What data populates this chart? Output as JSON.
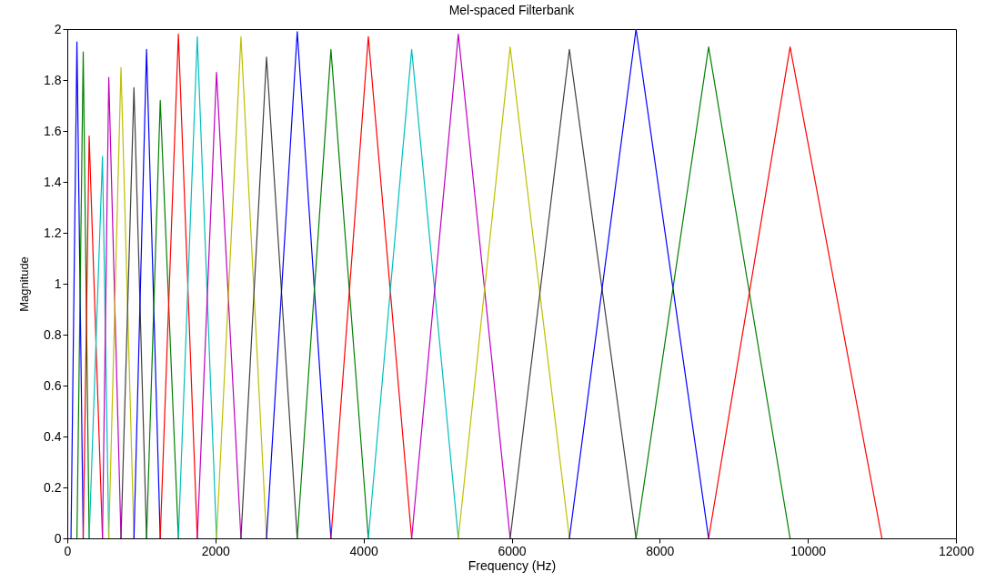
{
  "chart_data": {
    "type": "line",
    "title": "Mel-spaced Filterbank",
    "xlabel": "Frequency (Hz)",
    "ylabel": "Magnitude",
    "xlim": [
      0,
      12000
    ],
    "xticks": [
      0,
      2000,
      4000,
      6000,
      8000,
      10000,
      12000
    ],
    "ylim": [
      0,
      2
    ],
    "yticks": [
      0,
      0.2,
      0.4,
      0.6,
      0.8,
      1,
      1.2,
      1.4,
      1.6,
      1.8,
      2
    ],
    "grid": false,
    "legend": false,
    "series": [
      {
        "color": "#0000ff",
        "x": [
          50,
          130,
          215
        ],
        "values": [
          0,
          1.95,
          0
        ]
      },
      {
        "color": "#008000",
        "x": [
          130,
          215,
          295
        ],
        "values": [
          0,
          1.91,
          0
        ]
      },
      {
        "color": "#ff0000",
        "x": [
          215,
          295,
          475
        ],
        "values": [
          0,
          1.58,
          0
        ]
      },
      {
        "color": "#00bfbf",
        "x": [
          295,
          475,
          560
        ],
        "values": [
          0,
          1.5,
          0
        ]
      },
      {
        "color": "#bf00bf",
        "x": [
          475,
          560,
          725
        ],
        "values": [
          0,
          1.81,
          0
        ]
      },
      {
        "color": "#bfbf00",
        "x": [
          560,
          725,
          900
        ],
        "values": [
          0,
          1.85,
          0
        ]
      },
      {
        "color": "#404040",
        "x": [
          725,
          900,
          1070
        ],
        "values": [
          0,
          1.77,
          0
        ]
      },
      {
        "color": "#0000ff",
        "x": [
          900,
          1070,
          1255
        ],
        "values": [
          0,
          1.92,
          0
        ]
      },
      {
        "color": "#008000",
        "x": [
          1070,
          1255,
          1500
        ],
        "values": [
          0,
          1.72,
          0
        ]
      },
      {
        "color": "#ff0000",
        "x": [
          1255,
          1500,
          1755
        ],
        "values": [
          0,
          1.98,
          0
        ]
      },
      {
        "color": "#00bfbf",
        "x": [
          1500,
          1755,
          2015
        ],
        "values": [
          0,
          1.97,
          0
        ]
      },
      {
        "color": "#bf00bf",
        "x": [
          1755,
          2015,
          2345
        ],
        "values": [
          0,
          1.83,
          0
        ]
      },
      {
        "color": "#bfbf00",
        "x": [
          2015,
          2345,
          2690
        ],
        "values": [
          0,
          1.97,
          0
        ]
      },
      {
        "color": "#404040",
        "x": [
          2345,
          2690,
          3105
        ],
        "values": [
          0,
          1.89,
          0
        ]
      },
      {
        "color": "#0000ff",
        "x": [
          2690,
          3105,
          3560
        ],
        "values": [
          0,
          1.99,
          0
        ]
      },
      {
        "color": "#008000",
        "x": [
          3105,
          3560,
          4065
        ],
        "values": [
          0,
          1.92,
          0
        ]
      },
      {
        "color": "#ff0000",
        "x": [
          3560,
          4065,
          4650
        ],
        "values": [
          0,
          1.97,
          0
        ]
      },
      {
        "color": "#00bfbf",
        "x": [
          4065,
          4650,
          5280
        ],
        "values": [
          0,
          1.92,
          0
        ]
      },
      {
        "color": "#bf00bf",
        "x": [
          4650,
          5280,
          5980
        ],
        "values": [
          0,
          1.98,
          0
        ]
      },
      {
        "color": "#bfbf00",
        "x": [
          5280,
          5980,
          6780
        ],
        "values": [
          0,
          1.93,
          0
        ]
      },
      {
        "color": "#404040",
        "x": [
          5980,
          6780,
          7680
        ],
        "values": [
          0,
          1.92,
          0
        ]
      },
      {
        "color": "#0000ff",
        "x": [
          6780,
          7680,
          8660
        ],
        "values": [
          0,
          2,
          0
        ]
      },
      {
        "color": "#008000",
        "x": [
          7680,
          8660,
          9760
        ],
        "values": [
          0,
          1.93,
          0
        ]
      },
      {
        "color": "#ff0000",
        "x": [
          8660,
          9760,
          11000
        ],
        "values": [
          0,
          1.93,
          0
        ]
      }
    ]
  }
}
